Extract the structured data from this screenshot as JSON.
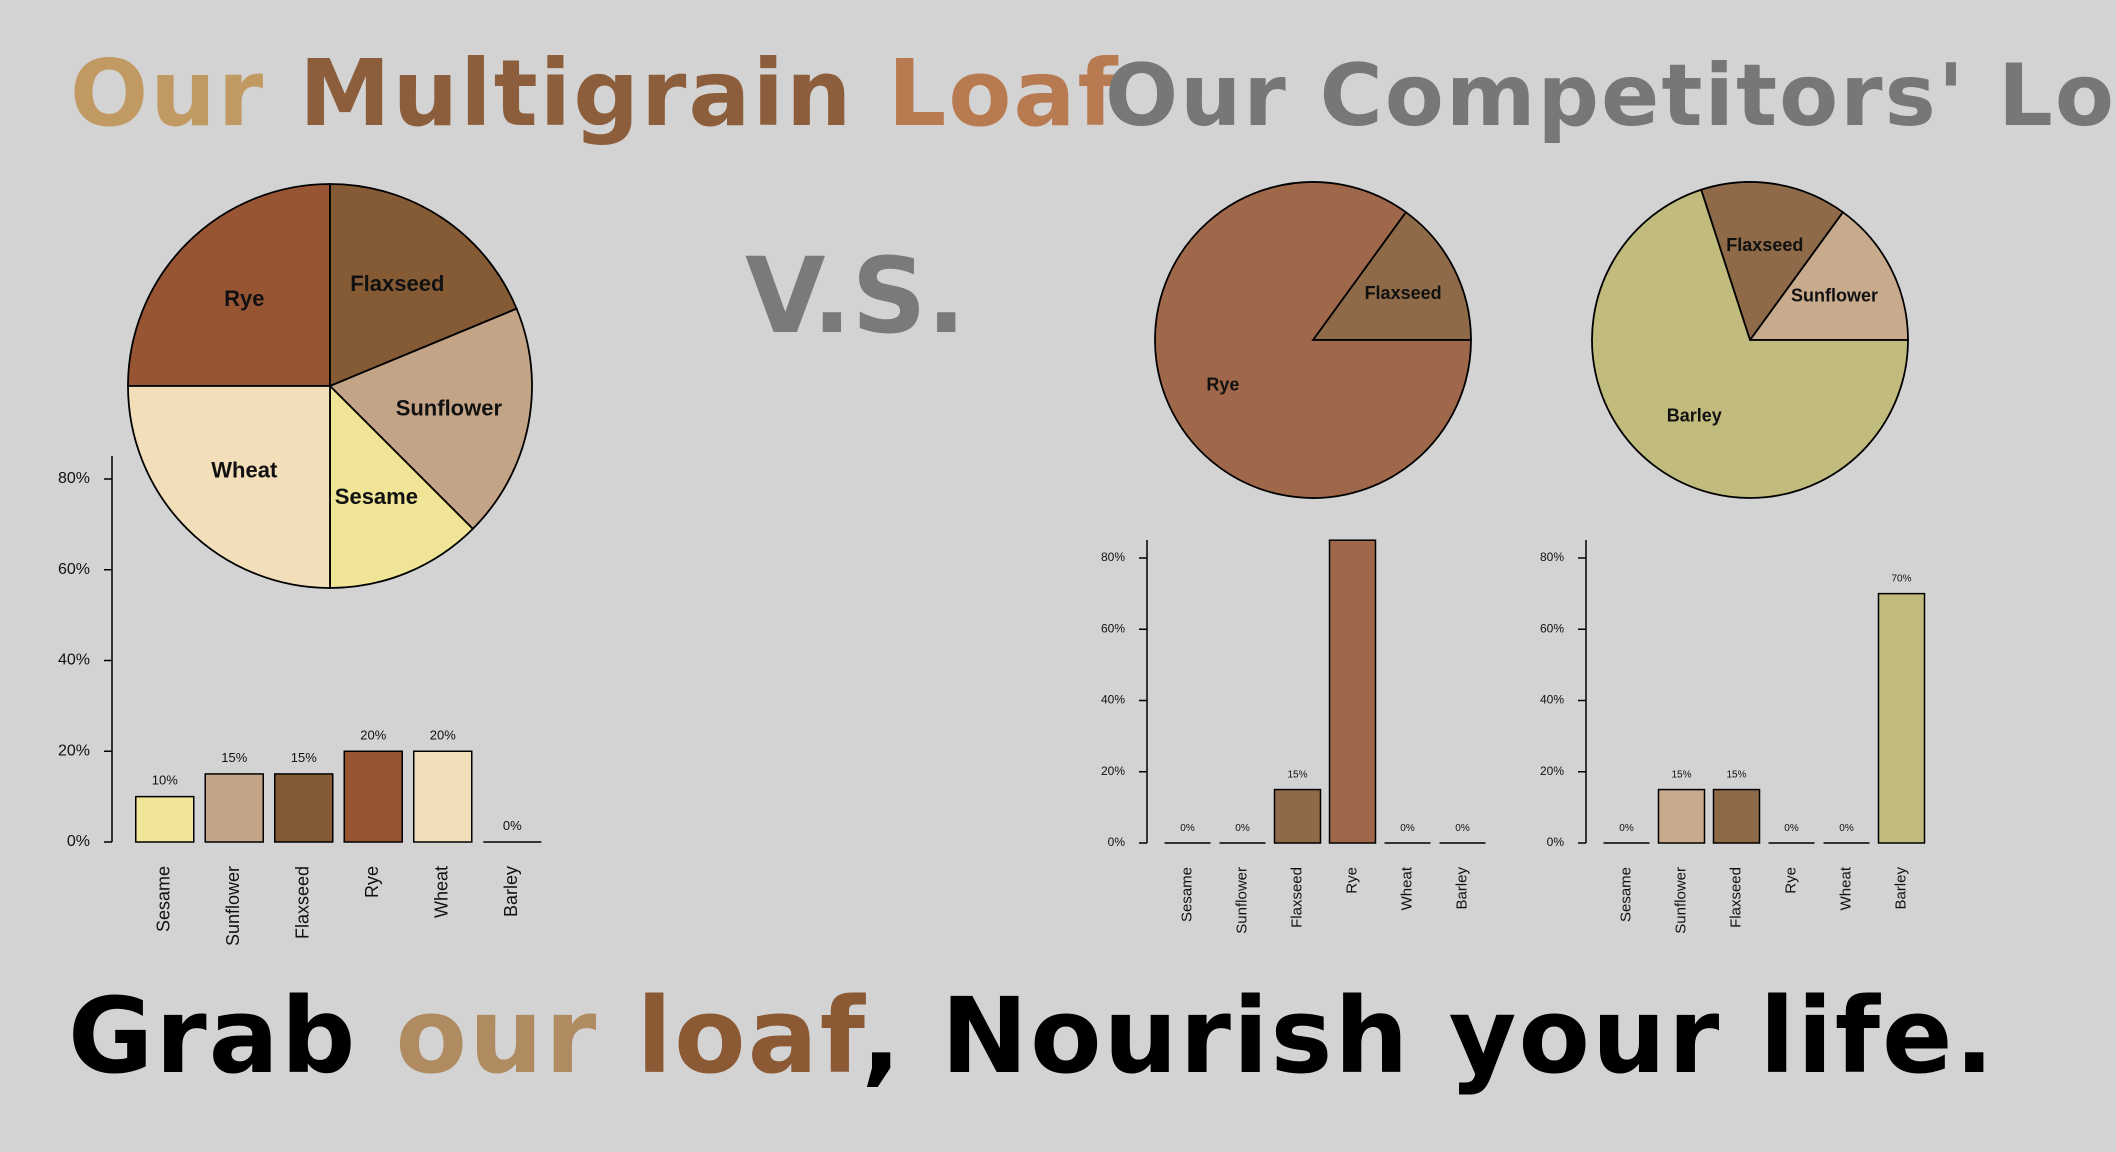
{
  "titles": {
    "left_parts": [
      {
        "text": "Our",
        "color": "#c19a63"
      },
      {
        "text": " ",
        "color": "#000000"
      },
      {
        "text": "Multigrain",
        "color": "#8c5e3c"
      },
      {
        "text": " ",
        "color": "#000000"
      },
      {
        "text": "Loaf",
        "color": "#b87a50"
      }
    ],
    "right": "Our Competitors' Loaf",
    "vs": "V.S.",
    "tagline_parts": [
      {
        "text": "Grab ",
        "color": "#000000"
      },
      {
        "text": "our",
        "color": "#b08a60"
      },
      {
        "text": " ",
        "color": "#000000"
      },
      {
        "text": "loaf",
        "color": "#8b5a35"
      },
      {
        "text": ", Nourish your life.",
        "color": "#000000"
      }
    ]
  },
  "chart_data": [
    {
      "type": "pie",
      "categories": [
        "Sesame",
        "Sunflower",
        "Flaxseed",
        "Rye",
        "Wheat"
      ],
      "values": [
        10,
        15,
        15,
        20,
        20
      ],
      "colors": [
        "#f0e596",
        "#c4a487",
        "#845b34",
        "#975534",
        "#f2deb8"
      ]
    },
    {
      "type": "bar",
      "categories": [
        "Sesame",
        "Sunflower",
        "Flaxseed",
        "Rye",
        "Wheat",
        "Barley"
      ],
      "values": [
        10,
        15,
        15,
        20,
        20,
        0
      ],
      "data_labels": [
        "10%",
        "15%",
        "15%",
        "20%",
        "20%",
        "0%"
      ],
      "colors": [
        "#f0e596",
        "#c4a487",
        "#845b34",
        "#975534",
        "#f2deb8",
        "#c1bb7d"
      ],
      "yticks": [
        "0%",
        "20%",
        "40%",
        "60%",
        "80%"
      ],
      "ylim": [
        0,
        85
      ]
    },
    {
      "type": "pie",
      "categories": [
        "Flaxseed",
        "Rye"
      ],
      "values": [
        15,
        85
      ],
      "colors": [
        "#8f6a48",
        "#a0684b"
      ]
    },
    {
      "type": "pie",
      "categories": [
        "Flaxseed",
        "Sunflower",
        "Barley"
      ],
      "values": [
        15,
        15,
        70
      ],
      "colors": [
        "#8f6a48",
        "#c8aa8d",
        "#c1bb7d"
      ]
    },
    {
      "type": "bar",
      "categories": [
        "Sesame",
        "Sunflower",
        "Flaxseed",
        "Rye",
        "Wheat",
        "Barley"
      ],
      "values": [
        0,
        0,
        15,
        85,
        0,
        0
      ],
      "data_labels": [
        "0%",
        "0%",
        "15%",
        "",
        "0%",
        "0%"
      ],
      "colors": [
        "#f0e596",
        "#c4a487",
        "#8f6a48",
        "#a0684b",
        "#f2deb8",
        "#c1bb7d"
      ],
      "yticks": [
        "0%",
        "20%",
        "40%",
        "60%",
        "80%"
      ],
      "ylim": [
        0,
        85
      ]
    },
    {
      "type": "bar",
      "categories": [
        "Sesame",
        "Sunflower",
        "Flaxseed",
        "Rye",
        "Wheat",
        "Barley"
      ],
      "values": [
        0,
        15,
        15,
        0,
        0,
        70
      ],
      "data_labels": [
        "0%",
        "15%",
        "15%",
        "0%",
        "0%",
        "70%"
      ],
      "colors": [
        "#f0e596",
        "#c8aa8d",
        "#8f6a48",
        "#a0684b",
        "#f2deb8",
        "#c1bb7d"
      ],
      "yticks": [
        "0%",
        "20%",
        "40%",
        "60%",
        "80%"
      ],
      "ylim": [
        0,
        85
      ]
    }
  ]
}
